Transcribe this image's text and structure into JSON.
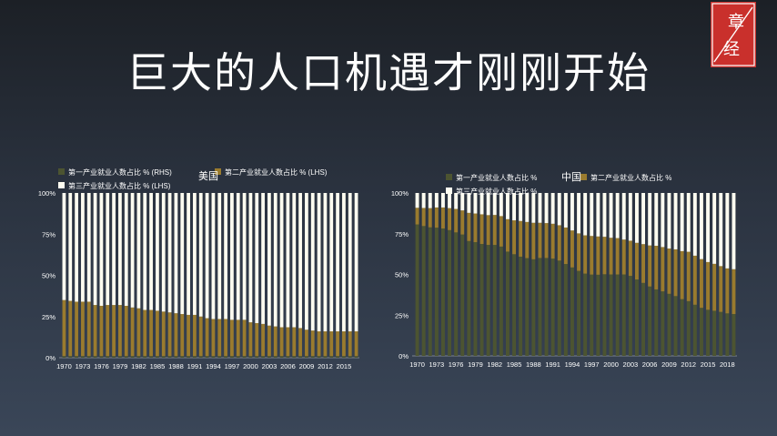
{
  "title": "巨大的人口机遇才刚刚开始",
  "logo": {
    "text": "章经",
    "color": "#c9302c"
  },
  "colors": {
    "primary": "#4c5431",
    "secondary": "#9a7b2e",
    "tertiary": "#fdfcf0"
  },
  "chart_data": [
    {
      "type": "bar",
      "name": "美国",
      "stacked": true,
      "categories": [
        "1970",
        "1971",
        "1972",
        "1973",
        "1974",
        "1975",
        "1976",
        "1977",
        "1978",
        "1979",
        "1980",
        "1981",
        "1982",
        "1983",
        "1984",
        "1985",
        "1986",
        "1987",
        "1988",
        "1989",
        "1990",
        "1991",
        "1992",
        "1993",
        "1994",
        "1995",
        "1996",
        "1997",
        "1998",
        "1999",
        "2000",
        "2001",
        "2002",
        "2003",
        "2004",
        "2005",
        "2006",
        "2007",
        "2008",
        "2009",
        "2010",
        "2011",
        "2012",
        "2013",
        "2014",
        "2015",
        "2016",
        "2017"
      ],
      "tick_labels": [
        "1970",
        "1973",
        "1976",
        "1979",
        "1982",
        "1985",
        "1988",
        "1991",
        "1994",
        "1997",
        "2000",
        "2003",
        "2006",
        "2009",
        "2012",
        "2015"
      ],
      "y_ticks": [
        "0%",
        "25%",
        "50%",
        "75%",
        "100%"
      ],
      "ylim": [
        0,
        100
      ],
      "legend": [
        "第一产业就业人数占比 % (RHS)",
        "第二产业就业人数占比 % (LHS)",
        "第三产业就业人数占比 % (LHS)"
      ],
      "series": [
        {
          "name": "第一产业就业人数占比 % (RHS)",
          "values": [
            1,
            1,
            1,
            1,
            1,
            1,
            1,
            1,
            1,
            1,
            1,
            1,
            1,
            1,
            1,
            1,
            1,
            1,
            1,
            1,
            1,
            1,
            1,
            1,
            1,
            1,
            1,
            1,
            1,
            1,
            1,
            1,
            1,
            1,
            1,
            1,
            1,
            1,
            1,
            1,
            1,
            1,
            1,
            1,
            1,
            1,
            1,
            1
          ]
        },
        {
          "name": "第二产业就业人数占比 % (LHS)",
          "values": [
            34,
            33.5,
            33,
            33,
            33,
            31,
            30.5,
            31,
            31,
            31,
            30.5,
            29.5,
            29,
            28,
            28,
            27.5,
            27,
            26.5,
            26,
            25.5,
            25,
            25,
            24,
            23,
            22.5,
            22.5,
            22.5,
            22,
            22,
            22,
            20.5,
            20,
            19.5,
            18.5,
            18,
            17.5,
            17.5,
            17.5,
            17,
            16,
            15.5,
            15,
            15,
            15,
            15,
            15,
            15,
            15
          ]
        },
        {
          "name": "第三产业就业人数占比 % (LHS)",
          "values": [
            65,
            65.5,
            66,
            66,
            66,
            68,
            68.5,
            68,
            68,
            68,
            68.5,
            69.5,
            70,
            71,
            71,
            71.5,
            72,
            72.5,
            73,
            73.5,
            74,
            74,
            75,
            76,
            76.5,
            76.5,
            76.5,
            77,
            77,
            77,
            78.5,
            79,
            79.5,
            80.5,
            81,
            81.5,
            81.5,
            81.5,
            82,
            83,
            83.5,
            84,
            84,
            84,
            84,
            84,
            84,
            84
          ]
        }
      ]
    },
    {
      "type": "bar",
      "name": "中国",
      "stacked": true,
      "categories": [
        "1970",
        "1971",
        "1972",
        "1973",
        "1974",
        "1975",
        "1976",
        "1977",
        "1978",
        "1979",
        "1980",
        "1981",
        "1982",
        "1983",
        "1984",
        "1985",
        "1986",
        "1987",
        "1988",
        "1989",
        "1990",
        "1991",
        "1992",
        "1993",
        "1994",
        "1995",
        "1996",
        "1997",
        "1998",
        "1999",
        "2000",
        "2001",
        "2002",
        "2003",
        "2004",
        "2005",
        "2006",
        "2007",
        "2008",
        "2009",
        "2010",
        "2011",
        "2012",
        "2013",
        "2014",
        "2015",
        "2016",
        "2017",
        "2018",
        "2019"
      ],
      "tick_labels": [
        "1970",
        "1973",
        "1976",
        "1979",
        "1982",
        "1985",
        "1988",
        "1991",
        "1994",
        "1997",
        "2000",
        "2003",
        "2006",
        "2009",
        "2012",
        "2015",
        "2018"
      ],
      "y_ticks": [
        "0%",
        "25%",
        "50%",
        "75%",
        "100%"
      ],
      "ylim": [
        0,
        100
      ],
      "legend": [
        "第一产业就业人数占比 %",
        "第二产业就业人数占比 %",
        "第三产业就业人数占比 %"
      ],
      "series": [
        {
          "name": "第一产业就业人数占比 %",
          "values": [
            80.7,
            79.7,
            78.9,
            78.7,
            78.2,
            77.2,
            75.8,
            74.5,
            70.5,
            69.8,
            68.7,
            68.1,
            68.1,
            67.1,
            64.0,
            62.4,
            60.9,
            60.0,
            59.3,
            60.1,
            60.1,
            59.7,
            58.5,
            56.4,
            54.3,
            52.2,
            50.5,
            49.9,
            49.8,
            50.1,
            50.0,
            50.0,
            50.0,
            49.1,
            46.9,
            44.8,
            42.6,
            40.8,
            39.6,
            38.1,
            36.7,
            34.8,
            33.6,
            31.4,
            29.5,
            28.3,
            27.7,
            27.0,
            26.1,
            25.7
          ]
        },
        {
          "name": "第二产业就业人数占比 %",
          "values": [
            10.2,
            11.1,
            11.8,
            12.4,
            12.9,
            13.5,
            14.4,
            14.8,
            17.3,
            17.6,
            18.2,
            18.3,
            18.4,
            18.7,
            19.9,
            20.8,
            21.9,
            22.2,
            22.4,
            21.6,
            21.4,
            21.4,
            21.7,
            22.4,
            22.7,
            23.0,
            23.5,
            23.7,
            23.5,
            23.0,
            22.5,
            22.3,
            21.4,
            21.6,
            22.5,
            23.8,
            25.2,
            26.8,
            27.2,
            27.8,
            28.7,
            29.5,
            30.3,
            30.1,
            29.9,
            29.3,
            28.8,
            28.1,
            27.6,
            27.5
          ]
        },
        {
          "name": "第三产业就业人数占比 %",
          "values": [
            9.1,
            9.2,
            9.3,
            8.9,
            8.9,
            9.3,
            9.8,
            10.7,
            12.2,
            12.6,
            13.1,
            13.6,
            13.5,
            14.2,
            16.1,
            16.8,
            17.2,
            17.8,
            18.3,
            18.3,
            18.5,
            18.9,
            19.8,
            21.2,
            23.0,
            24.8,
            26.0,
            26.4,
            26.7,
            26.9,
            27.5,
            27.7,
            28.6,
            29.3,
            30.6,
            31.4,
            32.2,
            32.4,
            33.2,
            34.1,
            34.6,
            35.7,
            36.1,
            38.5,
            40.6,
            42.4,
            43.5,
            44.9,
            46.3,
            46.8
          ]
        }
      ]
    }
  ]
}
